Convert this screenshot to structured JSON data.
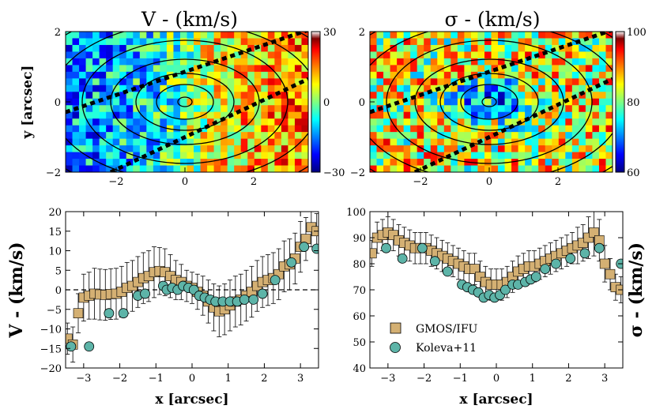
{
  "chart_data": [
    {
      "type": "heatmap",
      "title": "V - (km/s)",
      "xlabel": "",
      "ylabel": "y [arcsec]",
      "xlim": [
        -3.5,
        3.5
      ],
      "ylim": [
        -2,
        2
      ],
      "xticks": [
        "−2",
        "0",
        "2"
      ],
      "yticks": [
        "2",
        "0",
        "−2"
      ],
      "colorbar": {
        "min": -30,
        "max": 30,
        "ticks": [
          "30",
          "0",
          "−30"
        ],
        "colormap": "jet"
      },
      "field": "velocity: negative on left (x<0), positive on right (x>0)",
      "overlay": "isophote contours and dotted slit edges at ~25 deg"
    },
    {
      "type": "heatmap",
      "title": "σ - (km/s)",
      "xlim": [
        -3.5,
        3.5
      ],
      "ylim": [
        -2,
        2
      ],
      "xticks": [
        "−2",
        "0",
        "2"
      ],
      "yticks": [
        "2",
        "0",
        "−2"
      ],
      "colorbar": {
        "min": 60,
        "max": 100,
        "ticks": [
          "100",
          "80",
          "60"
        ],
        "colormap": "jet"
      },
      "field": "dispersion: minimum near centre (~70), higher outside (~85-95)",
      "overlay": "isophote contours and dotted slit edges at ~25 deg"
    },
    {
      "type": "scatter",
      "xlabel": "x [arcsec]",
      "ylabel": "V - (km/s)",
      "xlim": [
        -3.5,
        3.5
      ],
      "ylim": [
        -20,
        20
      ],
      "xticks": [
        -3,
        -2,
        -1,
        0,
        1,
        2,
        3
      ],
      "xtick_labels": [
        "−3",
        "−2",
        "−1",
        "0",
        "1",
        "2",
        "3"
      ],
      "yticks": [
        -20,
        -15,
        -10,
        -5,
        0,
        5,
        10,
        15,
        20
      ],
      "ytick_labels": [
        "−20",
        "−15",
        "−10",
        "−5",
        "0",
        "5",
        "10",
        "15",
        "20"
      ],
      "zero_line": true,
      "series": [
        {
          "name": "GMOS/IFU",
          "marker": "square",
          "color": "#d4b073",
          "x": [
            -3.45,
            -3.3,
            -3.15,
            -3.0,
            -2.85,
            -2.7,
            -2.55,
            -2.4,
            -2.25,
            -2.1,
            -1.95,
            -1.8,
            -1.65,
            -1.5,
            -1.35,
            -1.2,
            -1.05,
            -0.9,
            -0.75,
            -0.6,
            -0.45,
            -0.3,
            -0.15,
            0.0,
            0.15,
            0.3,
            0.45,
            0.6,
            0.75,
            0.9,
            1.05,
            1.2,
            1.35,
            1.5,
            1.65,
            1.8,
            1.95,
            2.1,
            2.25,
            2.4,
            2.55,
            2.7,
            2.85,
            3.0,
            3.15,
            3.3,
            3.45
          ],
          "y": [
            -12.5,
            -14,
            -6,
            -2,
            -1.5,
            -1,
            -1.2,
            -1.3,
            -1.1,
            -1,
            -0.5,
            0.5,
            1,
            2,
            3,
            3.5,
            4.5,
            4.8,
            4.5,
            3.5,
            2.5,
            2,
            1,
            0.5,
            -0.5,
            -1.5,
            -3,
            -4.5,
            -5.5,
            -5,
            -4,
            -3,
            -2.5,
            -1.5,
            -0.5,
            1,
            2,
            2.5,
            3,
            4,
            6,
            6.5,
            8,
            11,
            13,
            16,
            15
          ],
          "err": [
            4,
            4.5,
            5,
            6,
            6,
            6.5,
            6.5,
            6.5,
            6.5,
            6.5,
            6.5,
            6.5,
            6.5,
            6.5,
            6.5,
            6.5,
            6.5,
            6,
            6,
            5.5,
            5,
            4.5,
            4,
            4,
            4.5,
            5,
            5.5,
            6,
            6.5,
            6.5,
            6.5,
            6.5,
            6.5,
            6.5,
            6.5,
            6.5,
            6.5,
            6.5,
            6.5,
            6.5,
            6.5,
            6.5,
            6.5,
            6.5,
            5.5,
            5,
            4.5
          ]
        },
        {
          "name": "Koleva+11",
          "marker": "circle",
          "color": "#5db4a8",
          "x": [
            -3.35,
            -2.85,
            -2.3,
            -1.9,
            -1.5,
            -1.3,
            -0.8,
            -0.7,
            -0.55,
            -0.4,
            -0.25,
            -0.1,
            0.05,
            0.2,
            0.35,
            0.5,
            0.65,
            0.85,
            1.05,
            1.25,
            1.45,
            1.7,
            1.95,
            2.3,
            2.75,
            3.1,
            3.45
          ],
          "y": [
            -14.5,
            -14.5,
            -6,
            -6,
            -1.5,
            -1,
            1,
            0,
            0.5,
            0,
            1,
            0.5,
            0,
            -1.5,
            -2,
            -2.5,
            -3,
            -3,
            -3,
            -3,
            -2.5,
            -2.5,
            -1,
            2.5,
            7,
            11,
            10.5
          ]
        }
      ]
    },
    {
      "type": "scatter",
      "xlabel": "x [arcsec]",
      "ylabel": "σ - (km/s)",
      "xlim": [
        -3.5,
        3.5
      ],
      "ylim": [
        40,
        100
      ],
      "xticks": [
        -3,
        -2,
        -1,
        0,
        1,
        2,
        3
      ],
      "xtick_labels": [
        "−3",
        "−2",
        "−1",
        "0",
        "1",
        "2",
        "3"
      ],
      "yticks": [
        40,
        50,
        60,
        70,
        80,
        90,
        100
      ],
      "ytick_labels": [
        "40",
        "50",
        "60",
        "70",
        "80",
        "90",
        "100"
      ],
      "legend": {
        "position": "lower-left",
        "entries": [
          "GMOS/IFU",
          "Koleva+11"
        ]
      },
      "series": [
        {
          "name": "GMOS/IFU",
          "marker": "square",
          "color": "#d4b073",
          "x": [
            -3.45,
            -3.3,
            -3.15,
            -3.0,
            -2.85,
            -2.7,
            -2.55,
            -2.4,
            -2.25,
            -2.1,
            -1.95,
            -1.8,
            -1.65,
            -1.5,
            -1.35,
            -1.2,
            -1.05,
            -0.9,
            -0.75,
            -0.6,
            -0.45,
            -0.3,
            -0.15,
            0.0,
            0.15,
            0.3,
            0.45,
            0.6,
            0.75,
            0.9,
            1.05,
            1.2,
            1.35,
            1.5,
            1.65,
            1.8,
            1.95,
            2.1,
            2.25,
            2.4,
            2.55,
            2.7,
            2.85,
            3.0,
            3.15,
            3.3,
            3.45
          ],
          "y": [
            84,
            90,
            91,
            92,
            91,
            89,
            88,
            87,
            86,
            86,
            86,
            85,
            84,
            83,
            82,
            81,
            80,
            79,
            78,
            78,
            75,
            73,
            72,
            72,
            72,
            73,
            75,
            77,
            78,
            79,
            79,
            80,
            81,
            82,
            83,
            84,
            85,
            86,
            87,
            88,
            90,
            92,
            89,
            80,
            76,
            71,
            70
          ],
          "err": [
            5,
            6,
            6,
            6,
            6,
            6,
            6,
            6,
            6,
            6,
            6,
            6,
            6,
            6,
            6,
            6,
            6,
            6,
            6,
            6,
            6,
            6,
            6,
            6,
            6,
            6,
            6,
            6,
            6,
            6,
            6,
            6,
            6,
            6,
            6,
            6,
            6,
            6,
            7,
            7,
            8,
            9,
            8,
            7,
            6,
            5,
            5
          ]
        },
        {
          "name": "Koleva+11",
          "marker": "circle",
          "color": "#5db4a8",
          "x": [
            -3.05,
            -2.6,
            -2.05,
            -1.7,
            -1.35,
            -0.95,
            -0.8,
            -0.65,
            -0.5,
            -0.35,
            -0.2,
            -0.05,
            0.1,
            0.25,
            0.45,
            0.6,
            0.8,
            0.95,
            1.1,
            1.35,
            1.65,
            2.05,
            2.45,
            2.85,
            3.45
          ],
          "y": [
            86,
            82,
            86,
            81,
            77,
            72,
            71,
            70,
            69,
            67,
            68,
            67,
            68,
            70,
            72,
            72,
            73,
            74,
            75,
            78,
            80,
            82,
            84,
            86,
            80
          ]
        }
      ]
    }
  ],
  "legend_labels": {
    "gmos": "GMOS/IFU",
    "koleva": "Koleva+11"
  }
}
